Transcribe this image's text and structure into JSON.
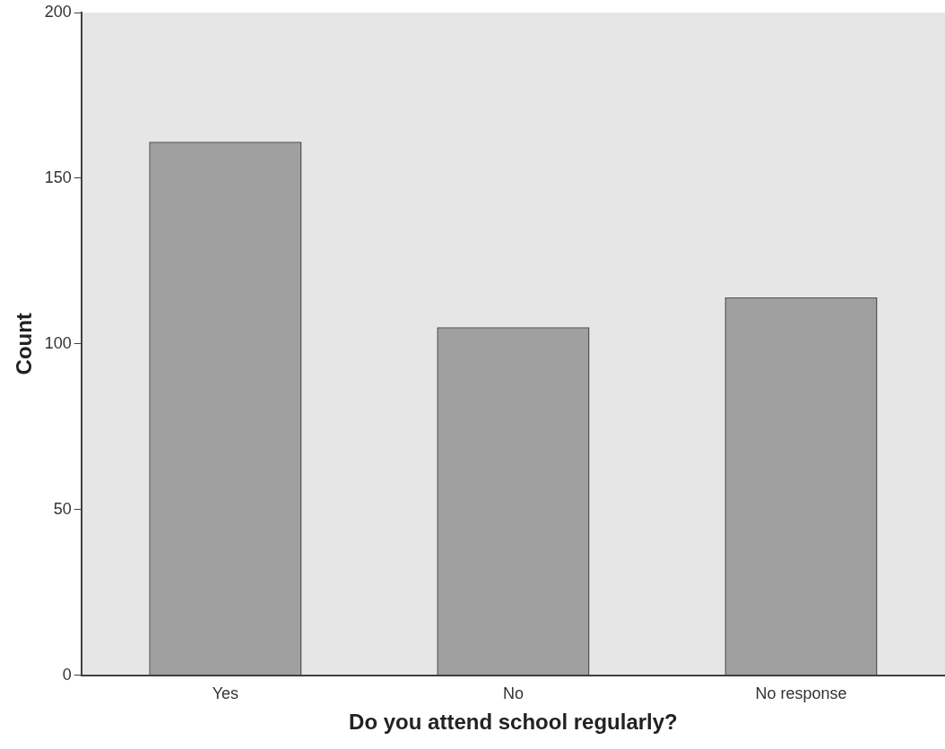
{
  "chart_data": {
    "type": "bar",
    "xlabel": "Do you attend school regularly?",
    "ylabel": "Count",
    "categories": [
      "Yes",
      "No",
      "No response"
    ],
    "values": [
      161,
      105,
      114
    ],
    "color": "#a0a0a0",
    "ylim": [
      0,
      200
    ],
    "yticks": [
      0,
      50,
      100,
      150,
      200
    ]
  }
}
